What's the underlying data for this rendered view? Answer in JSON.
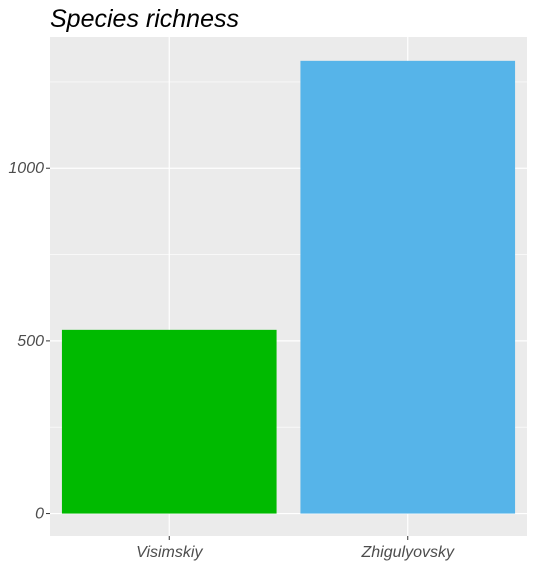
{
  "chart_data": {
    "type": "bar",
    "title": "Species richness",
    "xlabel": "",
    "ylabel": "",
    "categories": [
      "Visimskiy",
      "Zhigulyovsky"
    ],
    "values": [
      532,
      1311
    ],
    "colors": [
      "#00BA00",
      "#56B4E9"
    ],
    "ylim": [
      -65,
      1380
    ],
    "yticks": [
      0,
      500,
      1000
    ],
    "ytick_labels": [
      "0",
      "500",
      "1000"
    ],
    "grid": true,
    "legend": "none"
  }
}
